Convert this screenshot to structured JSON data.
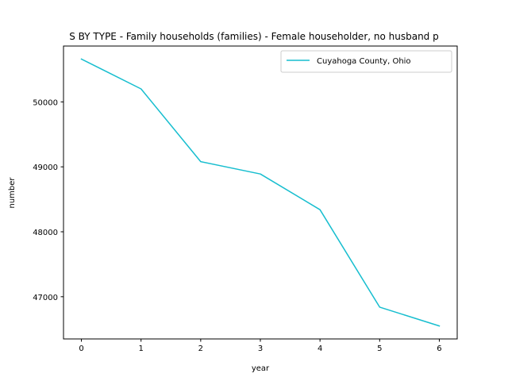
{
  "chart_data": {
    "type": "line",
    "title": "S BY TYPE - Family households (families) - Female householder, no husband p",
    "xlabel": "year",
    "ylabel": "number",
    "x": [
      0,
      1,
      2,
      3,
      4,
      5,
      6
    ],
    "series": [
      {
        "name": "Cuyahoga County, Ohio",
        "color": "#17becf",
        "values": [
          50660,
          50200,
          49080,
          48890,
          48340,
          46840,
          46550
        ]
      }
    ],
    "xlim": [
      -0.3,
      6.3
    ],
    "ylim": [
      46350,
      50860
    ],
    "xticks": [
      0,
      1,
      2,
      3,
      4,
      5,
      6
    ],
    "yticks": [
      47000,
      48000,
      49000,
      50000
    ],
    "xtick_labels": [
      "0",
      "1",
      "2",
      "3",
      "4",
      "5",
      "6"
    ],
    "ytick_labels": [
      "47000",
      "48000",
      "49000",
      "50000"
    ],
    "legend_position": "top-right",
    "grid": false
  }
}
